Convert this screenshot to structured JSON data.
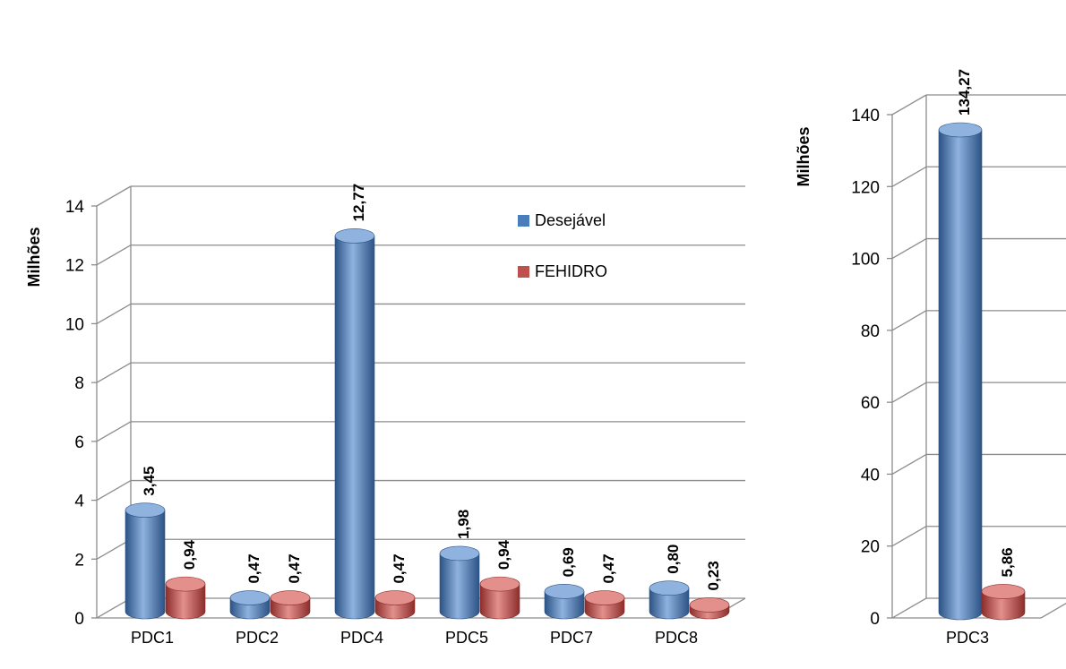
{
  "colors": {
    "desejavel": "#4a7ebb",
    "desejavel_dark": "#2c5385",
    "desejavel_light": "#8fb2df",
    "fehidro": "#c0504d",
    "fehidro_dark": "#8c2d2b",
    "fehidro_light": "#e3908d",
    "grid": "#8c8c8c"
  },
  "chart_data": [
    {
      "type": "bar",
      "style": "3d-cylinder",
      "categories": [
        "PDC1",
        "PDC2",
        "PDC4",
        "PDC5",
        "PDC7",
        "PDC8"
      ],
      "series": [
        {
          "name": "Desejável",
          "values": [
            3.45,
            0.47,
            12.77,
            1.98,
            0.69,
            0.8
          ],
          "labels": [
            "3,45",
            "0,47",
            "12,77",
            "1,98",
            "0,69",
            "0,80"
          ]
        },
        {
          "name": "FEHIDRO",
          "values": [
            0.94,
            0.47,
            0.47,
            0.94,
            0.47,
            0.23
          ],
          "labels": [
            "0,94",
            "0,47",
            "0,47",
            "0,94",
            "0,47",
            "0,23"
          ]
        }
      ],
      "ylabel": "Milhões",
      "ylim": [
        0,
        14
      ],
      "yticks": [
        "0",
        "2",
        "4",
        "6",
        "8",
        "10",
        "12",
        "14"
      ],
      "grid": true,
      "legend": "right, inside plot"
    },
    {
      "type": "bar",
      "style": "3d-cylinder",
      "categories": [
        "PDC3"
      ],
      "series": [
        {
          "name": "Desejável",
          "values": [
            134.27
          ],
          "labels": [
            "134,27"
          ]
        },
        {
          "name": "FEHIDRO",
          "values": [
            5.86
          ],
          "labels": [
            "5,86"
          ]
        }
      ],
      "ylabel": "Milhões",
      "ylim": [
        0,
        140
      ],
      "yticks": [
        "0",
        "20",
        "40",
        "60",
        "80",
        "100",
        "120",
        "140"
      ],
      "grid": true
    }
  ]
}
